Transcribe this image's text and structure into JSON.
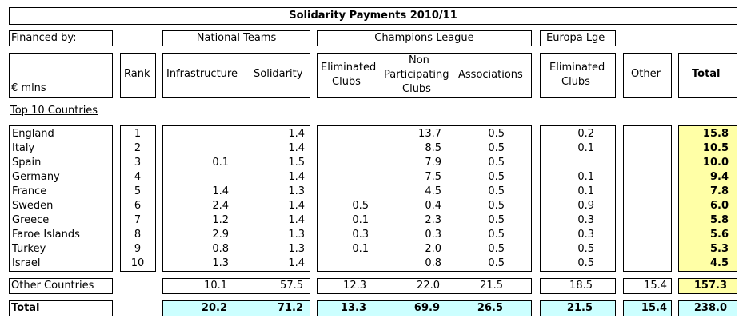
{
  "title": "Solidarity Payments 2010/11",
  "financed_by": "Financed by:",
  "groups": {
    "national_teams": "National Teams",
    "champions_league": "Champions League",
    "europa_lge": "Europa Lge"
  },
  "columns": {
    "unit": "€ mlns",
    "rank": "Rank",
    "infrastructure": "Infrastructure",
    "solidarity": "Solidarity",
    "cl_eliminated": [
      "Eliminated",
      "Clubs"
    ],
    "cl_non_participating": [
      "Non",
      "Participating",
      "Clubs"
    ],
    "associations": "Associations",
    "el_eliminated": [
      "Eliminated",
      "Clubs"
    ],
    "other": "Other",
    "total": "Total"
  },
  "section_label": "Top 10 Countries",
  "rows": [
    {
      "country": "England",
      "rank": "1",
      "infra": "",
      "solid": "1.4",
      "cl_elim": "",
      "cl_nonpart": "13.7",
      "assoc": "0.5",
      "el_elim": "0.2",
      "other": "",
      "total": "15.8"
    },
    {
      "country": "Italy",
      "rank": "2",
      "infra": "",
      "solid": "1.4",
      "cl_elim": "",
      "cl_nonpart": "8.5",
      "assoc": "0.5",
      "el_elim": "0.1",
      "other": "",
      "total": "10.5"
    },
    {
      "country": "Spain",
      "rank": "3",
      "infra": "0.1",
      "solid": "1.5",
      "cl_elim": "",
      "cl_nonpart": "7.9",
      "assoc": "0.5",
      "el_elim": "",
      "other": "",
      "total": "10.0"
    },
    {
      "country": "Germany",
      "rank": "4",
      "infra": "",
      "solid": "1.4",
      "cl_elim": "",
      "cl_nonpart": "7.5",
      "assoc": "0.5",
      "el_elim": "0.1",
      "other": "",
      "total": "9.4"
    },
    {
      "country": "France",
      "rank": "5",
      "infra": "1.4",
      "solid": "1.3",
      "cl_elim": "",
      "cl_nonpart": "4.5",
      "assoc": "0.5",
      "el_elim": "0.1",
      "other": "",
      "total": "7.8"
    },
    {
      "country": "Sweden",
      "rank": "6",
      "infra": "2.4",
      "solid": "1.4",
      "cl_elim": "0.5",
      "cl_nonpart": "0.4",
      "assoc": "0.5",
      "el_elim": "0.9",
      "other": "",
      "total": "6.0"
    },
    {
      "country": "Greece",
      "rank": "7",
      "infra": "1.2",
      "solid": "1.4",
      "cl_elim": "0.1",
      "cl_nonpart": "2.3",
      "assoc": "0.5",
      "el_elim": "0.3",
      "other": "",
      "total": "5.8"
    },
    {
      "country": "Faroe Islands",
      "rank": "8",
      "infra": "2.9",
      "solid": "1.3",
      "cl_elim": "0.3",
      "cl_nonpart": "0.3",
      "assoc": "0.5",
      "el_elim": "0.3",
      "other": "",
      "total": "5.6"
    },
    {
      "country": "Turkey",
      "rank": "9",
      "infra": "0.8",
      "solid": "1.3",
      "cl_elim": "0.1",
      "cl_nonpart": "2.0",
      "assoc": "0.5",
      "el_elim": "0.5",
      "other": "",
      "total": "5.3"
    },
    {
      "country": "Israel",
      "rank": "10",
      "infra": "1.3",
      "solid": "1.4",
      "cl_elim": "",
      "cl_nonpart": "0.8",
      "assoc": "0.5",
      "el_elim": "0.5",
      "other": "",
      "total": "4.5"
    }
  ],
  "other_countries": {
    "label": "Other Countries",
    "infra": "10.1",
    "solid": "57.5",
    "cl_elim": "12.3",
    "cl_nonpart": "22.0",
    "assoc": "21.5",
    "el_elim": "18.5",
    "other": "15.4",
    "total": "157.3"
  },
  "grand_total": {
    "label": "Total",
    "infra": "20.2",
    "solid": "71.2",
    "cl_elim": "13.3",
    "cl_nonpart": "69.9",
    "assoc": "26.5",
    "el_elim": "21.5",
    "other": "15.4",
    "total": "238.0"
  },
  "colors": {
    "total_highlight": "#ffffa6",
    "grand_total_highlight": "#ccffff"
  }
}
